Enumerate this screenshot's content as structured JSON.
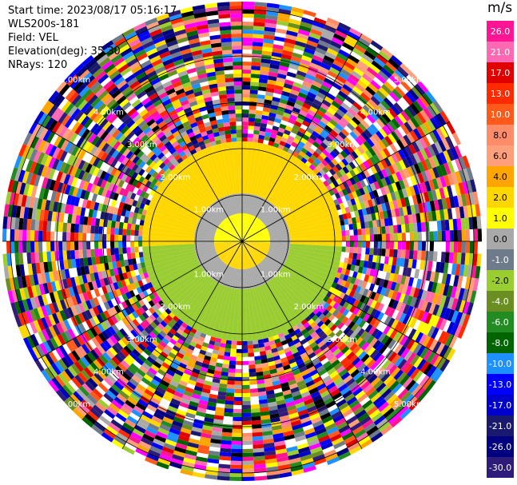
{
  "header": {
    "start_time": "Start time: 2023/08/17 05:16:17",
    "instrument": "WLS200s-181",
    "field": "Field: VEL",
    "elevation": "Elevation(deg): 35.30",
    "nrays": "NRays: 120"
  },
  "colorbar": {
    "unit": "m/s",
    "ticks": [
      "26.0",
      "21.0",
      "17.0",
      "13.0",
      "10.0",
      "8.0",
      "6.0",
      "4.0",
      "2.0",
      "1.0",
      "0.0",
      "-1.0",
      "-2.0",
      "-4.0",
      "-6.0",
      "-8.0",
      "-10.0",
      "-13.0",
      "-17.0",
      "-21.0",
      "-26.0",
      "-30.0"
    ],
    "colors": [
      "#ff1493",
      "#ff69b4",
      "#e00000",
      "#ff2a00",
      "#ff5a1a",
      "#ff8c69",
      "#ffa07a",
      "#ffa500",
      "#ffd700",
      "#ffff00",
      "#a9a9a9",
      "#6e7b8b",
      "#9acd32",
      "#6b8e23",
      "#228b22",
      "#006400",
      "#1e90ff",
      "#0000ff",
      "#0000cd",
      "#191970",
      "#000080",
      "#2f1b7a"
    ]
  },
  "chart_data": {
    "type": "ppi",
    "field": "VEL",
    "units": "m/s",
    "nrays": 120,
    "range_ring_labels": [
      "1.00km",
      "2.00km",
      "3.00km",
      "4.00km",
      "5.00km"
    ],
    "spokes_deg": [
      0,
      30,
      60,
      90,
      120,
      150,
      180,
      210,
      240,
      270,
      300,
      330
    ],
    "velocity_zones": [
      {
        "range_km": [
          0.0,
          0.6
        ],
        "sector": "north",
        "value": 1.5
      },
      {
        "range_km": [
          0.0,
          0.6
        ],
        "sector": "south",
        "value": 2.0
      },
      {
        "range_km": [
          0.6,
          1.1
        ],
        "sector": "all",
        "value": 0.0
      },
      {
        "range_km": [
          1.1,
          2.1
        ],
        "sector": "north",
        "value": 2.5
      },
      {
        "range_km": [
          1.1,
          2.1
        ],
        "sector": "south",
        "value": -2.0
      },
      {
        "range_km": [
          2.1,
          5.5
        ],
        "sector": "all",
        "value": "noise"
      }
    ]
  }
}
